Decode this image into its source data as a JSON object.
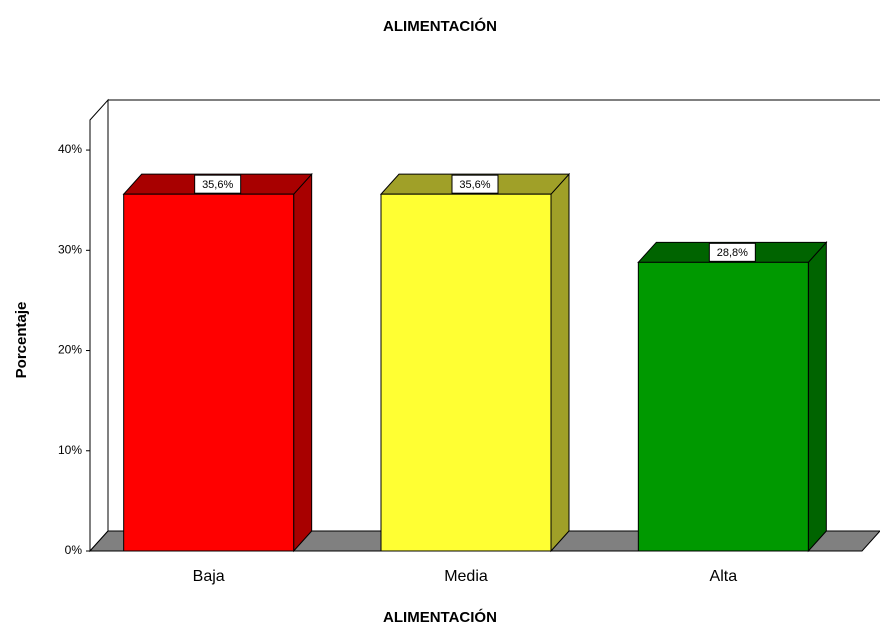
{
  "chart_data": {
    "type": "bar",
    "title": "ALIMENTACIÓN",
    "x_label": "ALIMENTACIÓN",
    "y_label": "Porcentaje",
    "categories": [
      "Baja",
      "Media",
      "Alta"
    ],
    "values": [
      35.6,
      35.6,
      28.8
    ],
    "value_labels": [
      "35,6%",
      "35,6%",
      "28,8%"
    ],
    "colors": [
      "#ff0000",
      "#ffff33",
      "#009900"
    ],
    "side_colors": [
      "#a80000",
      "#a0a028",
      "#006400"
    ],
    "ylim": [
      0,
      43
    ],
    "yticks": [
      {
        "value": 0,
        "label": "0%"
      },
      {
        "value": 10,
        "label": "10%"
      },
      {
        "value": 20,
        "label": "20%"
      },
      {
        "value": 30,
        "label": "30%"
      },
      {
        "value": 40,
        "label": "40%"
      }
    ]
  }
}
